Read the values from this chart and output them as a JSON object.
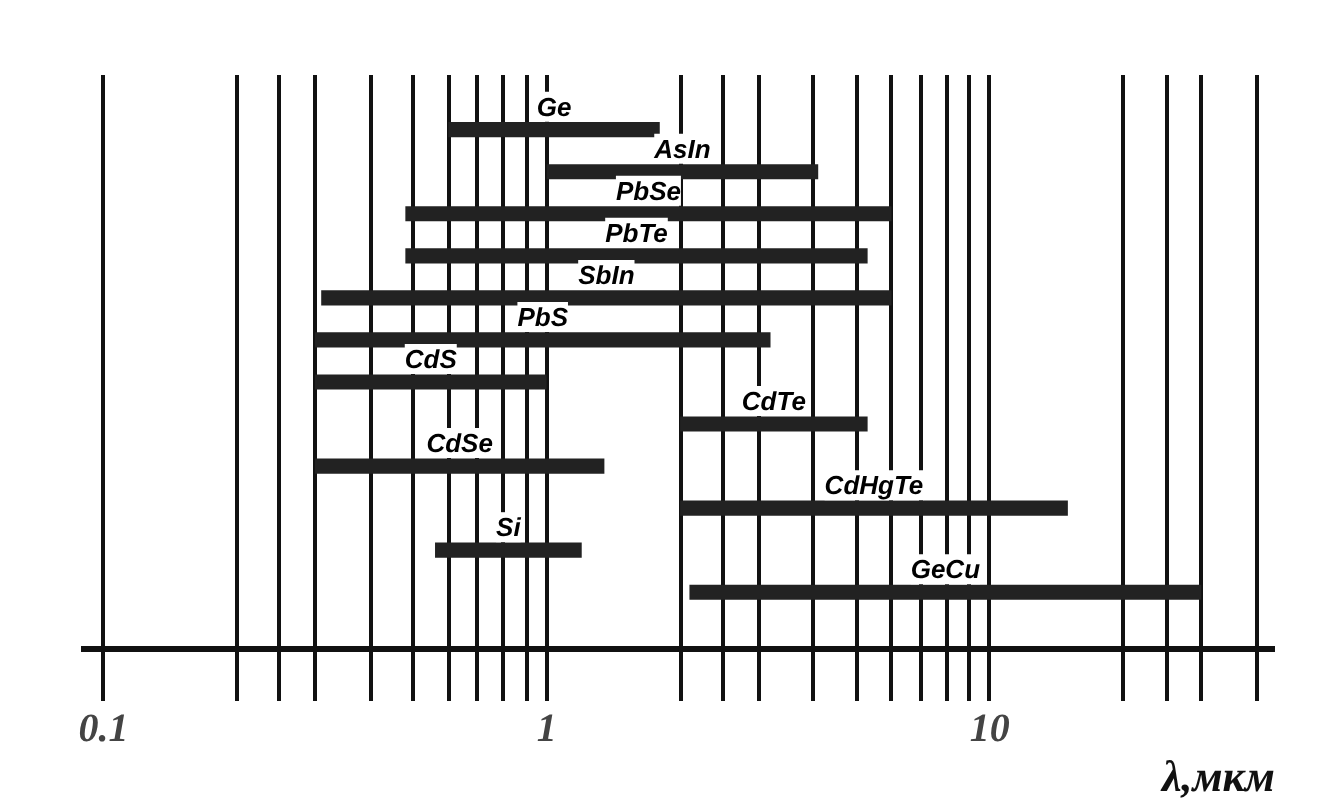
{
  "chart_data": {
    "type": "bar",
    "orientation": "horizontal",
    "xlabel": "λ,мкм",
    "log": "x",
    "grid": "x",
    "categories": [
      "Ge",
      "AsIn",
      "PbSe",
      "PbTe",
      "SbIn",
      "PbS",
      "CdS",
      "CdTe",
      "CdSe",
      "CdHgTe",
      "Si",
      "GeCu"
    ],
    "base": [
      0.6,
      1.0,
      0.48,
      0.48,
      0.31,
      0.3,
      0.3,
      2.0,
      0.3,
      2.0,
      0.56,
      2.1
    ],
    "values": [
      1.2,
      3.1,
      5.52,
      4.82,
      5.69,
      2.9,
      0.7,
      3.3,
      1.05,
      13.0,
      0.64,
      27.9
    ],
    "color": "#222222",
    "xlim": [
      0.089,
      44
    ],
    "xticks": [
      {
        "value": 0.1,
        "label": "0.1"
      },
      {
        "value": 0.2,
        "label": null
      },
      {
        "value": 0.25,
        "label": null
      },
      {
        "value": 0.3,
        "label": null
      },
      {
        "value": 0.4,
        "label": null
      },
      {
        "value": 0.5,
        "label": null
      },
      {
        "value": 0.6,
        "label": null
      },
      {
        "value": 0.7,
        "label": null
      },
      {
        "value": 0.8,
        "label": null
      },
      {
        "value": 0.9,
        "label": null
      },
      {
        "value": 1,
        "label": "1"
      },
      {
        "value": 2,
        "label": null
      },
      {
        "value": 2.5,
        "label": null
      },
      {
        "value": 3,
        "label": null
      },
      {
        "value": 4,
        "label": null
      },
      {
        "value": 5,
        "label": null
      },
      {
        "value": 6,
        "label": null
      },
      {
        "value": 7,
        "label": null
      },
      {
        "value": 8,
        "label": null
      },
      {
        "value": 9,
        "label": null
      },
      {
        "value": 10,
        "label": "10"
      },
      {
        "value": 20,
        "label": null
      },
      {
        "value": 25,
        "label": null
      },
      {
        "value": 30,
        "label": null
      },
      {
        "value": 40,
        "label": null
      }
    ]
  }
}
